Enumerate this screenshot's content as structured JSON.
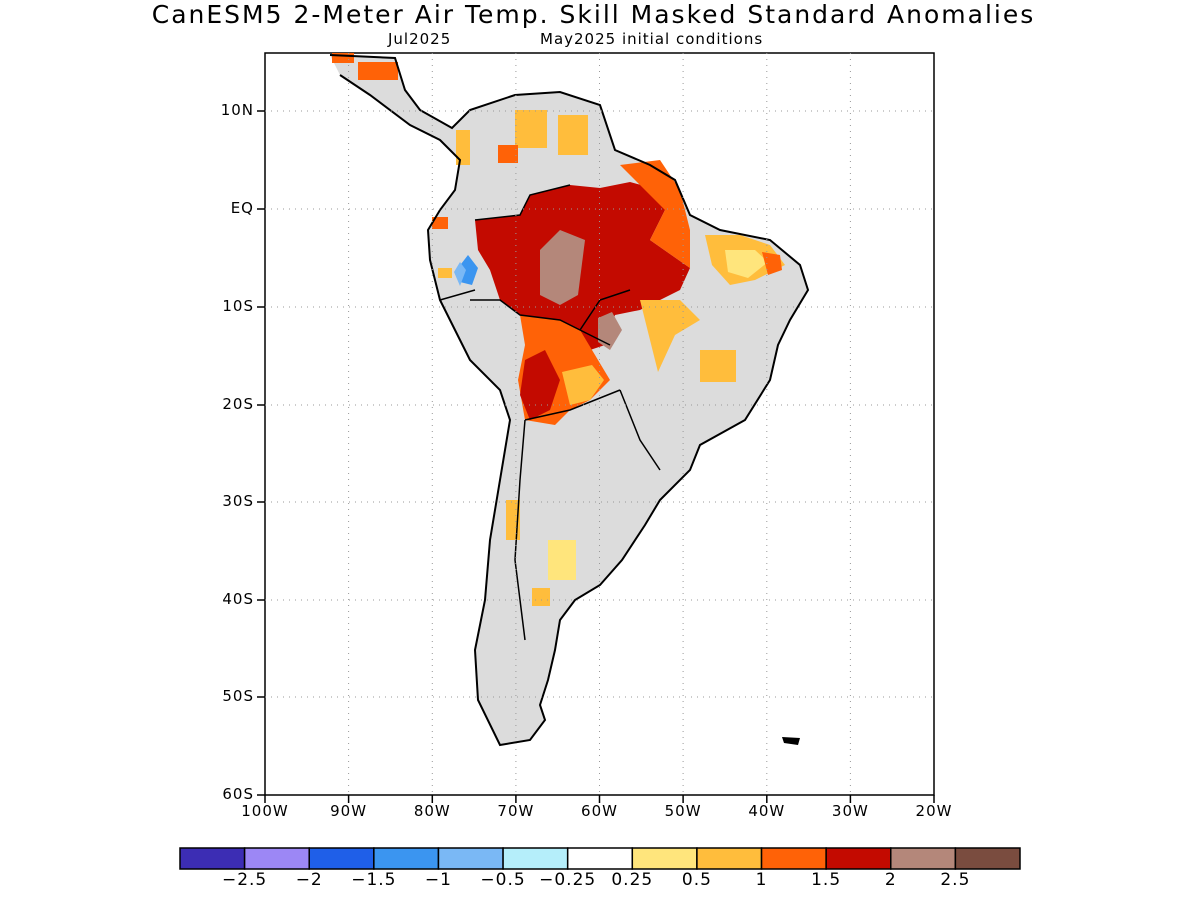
{
  "header": {
    "title": "CanESM5 2-Meter Air Temp. Skill Masked Standard Anomalies",
    "valid_month": "Jul2025",
    "initial_conditions": "May2025 initial conditions"
  },
  "map": {
    "region": "South America",
    "lat_labels": [
      "10N",
      "EQ",
      "10S",
      "20S",
      "30S",
      "40S",
      "50S",
      "60S"
    ],
    "lon_labels": [
      "100W",
      "90W",
      "80W",
      "70W",
      "60W",
      "50W",
      "40W",
      "30W",
      "20W"
    ],
    "gridlines": "dotted",
    "masked_fill_color": "#dcdcdc"
  },
  "colorbar": {
    "colors": [
      "#3c2db4",
      "#9c87f5",
      "#1f5fe8",
      "#3b95f0",
      "#7ab8f5",
      "#b5eefa",
      "#ffffff",
      "#ffe57c",
      "#ffbd3c",
      "#ff6207",
      "#c30a00",
      "#b4877a",
      "#7a4c3f"
    ],
    "labels": [
      "-2.5",
      "-2",
      "-1.5",
      "-1",
      "-0.5",
      "-0.25",
      "0.25",
      "0.5",
      "1",
      "1.5",
      "2",
      "2.5"
    ]
  },
  "anomaly_regions": [
    {
      "name": "central-amazon-strong-positive",
      "level": "2",
      "color": "#c30a00"
    },
    {
      "name": "amazon-peak-positive",
      "level": "2.5",
      "color": "#b4877a"
    },
    {
      "name": "northeast-brazil-positive",
      "level": "1.5",
      "color": "#ff6207"
    },
    {
      "name": "bolivia-paraguay-positive",
      "level": "1.5",
      "color": "#ff6207"
    },
    {
      "name": "peru-andes-negative",
      "level": "-1",
      "color": "#3b95f0"
    },
    {
      "name": "argentina-weak-positive",
      "level": "0.5",
      "color": "#ffe57c"
    }
  ]
}
